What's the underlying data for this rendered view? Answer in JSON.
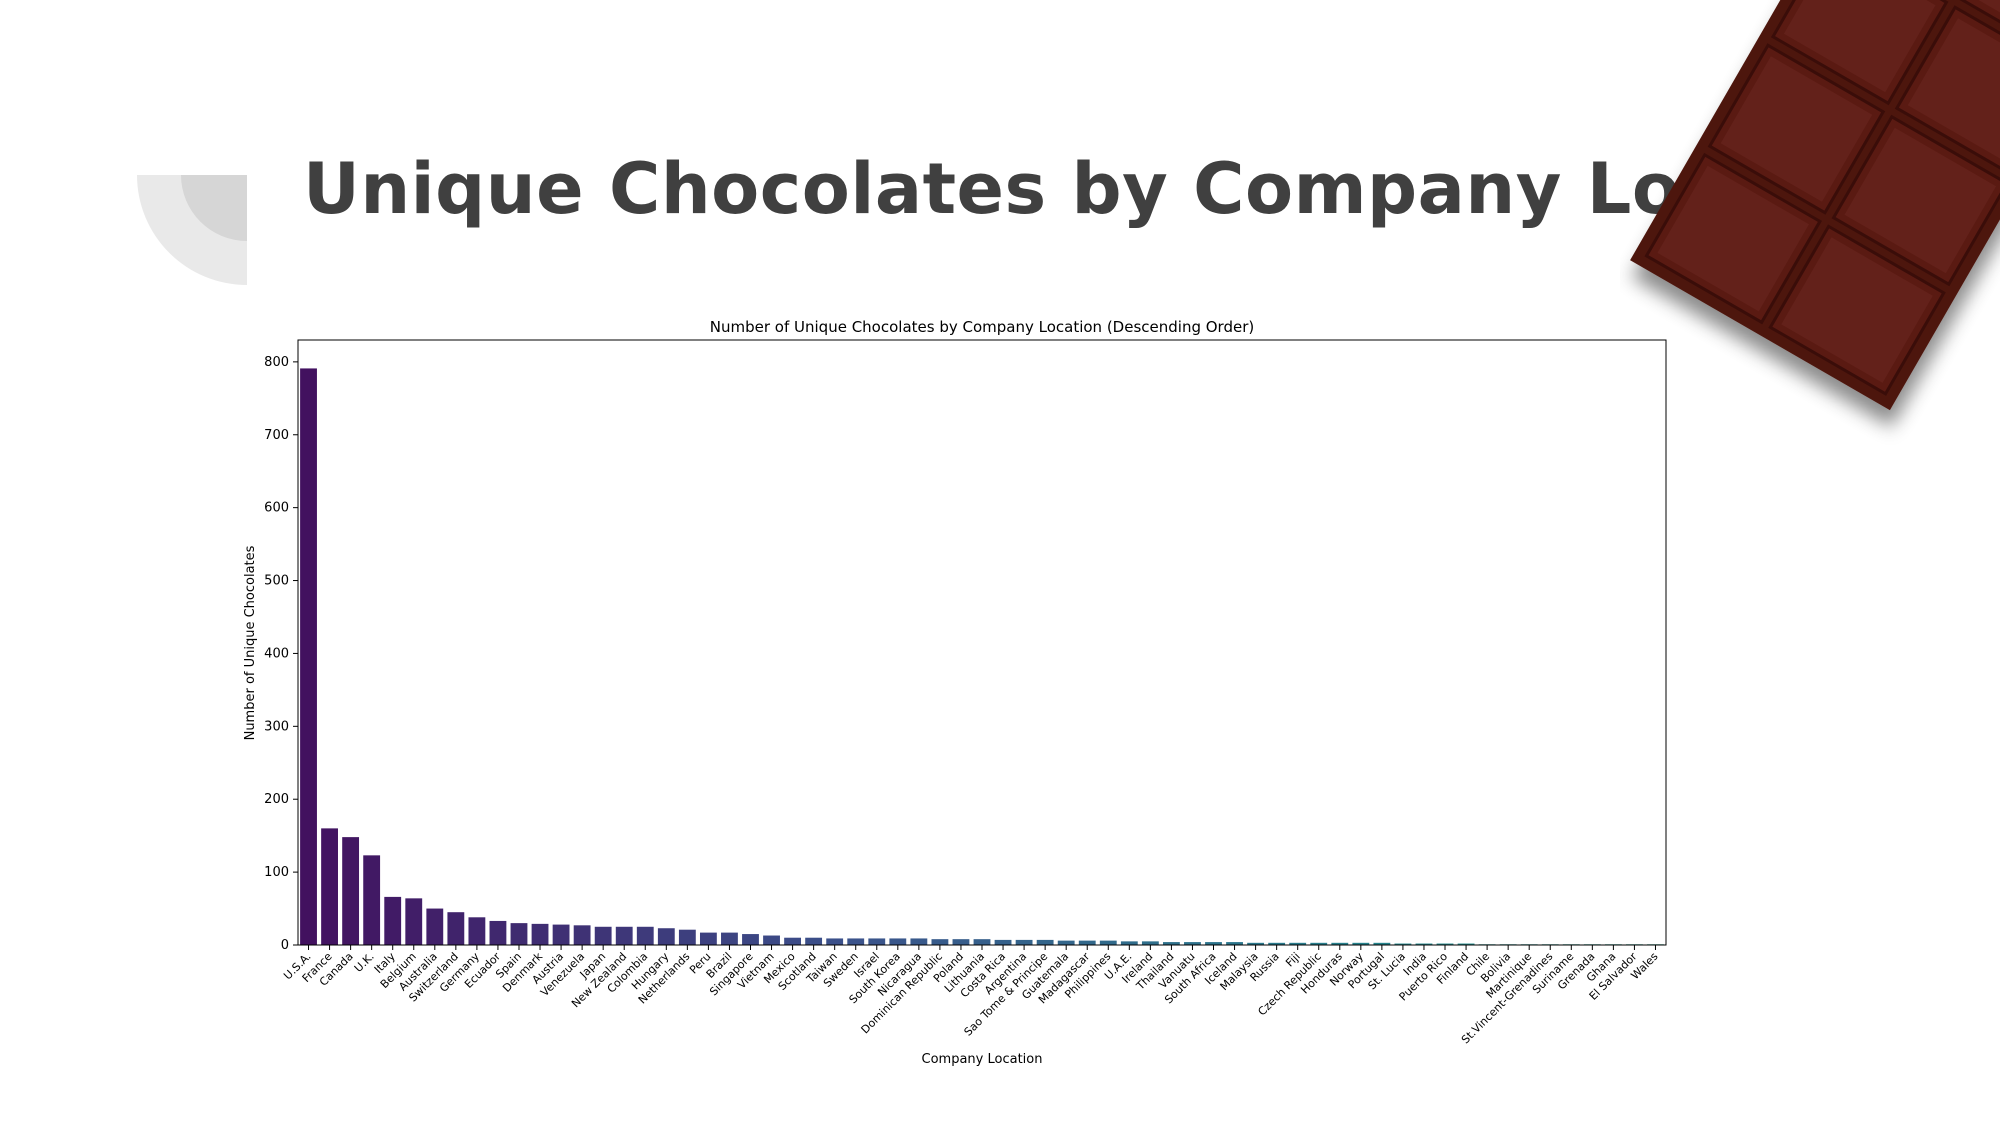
{
  "slide": {
    "title": "Unique Chocolates by Company Location"
  },
  "colors": {
    "title_text": "#404040",
    "chocolate": "#5a1a12",
    "deco_outer": "#e9e9e9",
    "deco_inner": "#d6d6d6"
  },
  "chart_data": {
    "type": "bar",
    "title": "Number of Unique Chocolates by Company Location (Descending Order)",
    "xlabel": "Company Location",
    "ylabel": "Number of Unique Chocolates",
    "ylim": [
      0,
      830
    ],
    "yticks": [
      0,
      100,
      200,
      300,
      400,
      500,
      600,
      700,
      800
    ],
    "grid": false,
    "colormap": "viridis",
    "categories": [
      "U.S.A.",
      "France",
      "Canada",
      "U.K.",
      "Italy",
      "Belgium",
      "Australia",
      "Switzerland",
      "Germany",
      "Ecuador",
      "Spain",
      "Denmark",
      "Austria",
      "Venezuela",
      "Japan",
      "New Zealand",
      "Colombia",
      "Hungary",
      "Netherlands",
      "Peru",
      "Brazil",
      "Singapore",
      "Vietnam",
      "Mexico",
      "Scotland",
      "Taiwan",
      "Sweden",
      "Israel",
      "South Korea",
      "Nicaragua",
      "Dominican Republic",
      "Poland",
      "Lithuania",
      "Costa Rica",
      "Argentina",
      "Sao Tome & Principe",
      "Guatemala",
      "Madagascar",
      "Philippines",
      "U.A.E.",
      "Ireland",
      "Thailand",
      "Vanuatu",
      "South Africa",
      "Iceland",
      "Malaysia",
      "Russia",
      "Fiji",
      "Czech Republic",
      "Honduras",
      "Norway",
      "Portugal",
      "St. Lucia",
      "India",
      "Puerto Rico",
      "Finland",
      "Chile",
      "Bolivia",
      "Martinique",
      "St.Vincent-Grenadines",
      "Suriname",
      "Grenada",
      "Ghana",
      "El Salvador",
      "Wales"
    ],
    "values": [
      791,
      160,
      148,
      123,
      66,
      64,
      50,
      45,
      38,
      33,
      30,
      29,
      28,
      27,
      25,
      25,
      25,
      23,
      21,
      17,
      17,
      15,
      13,
      10,
      10,
      9,
      9,
      9,
      9,
      9,
      8,
      8,
      8,
      7,
      7,
      7,
      6,
      6,
      6,
      5,
      5,
      4,
      4,
      4,
      4,
      3,
      3,
      3,
      3,
      3,
      3,
      3,
      2,
      2,
      2,
      2,
      1,
      1,
      1,
      1,
      1,
      1,
      1,
      1,
      1
    ]
  }
}
